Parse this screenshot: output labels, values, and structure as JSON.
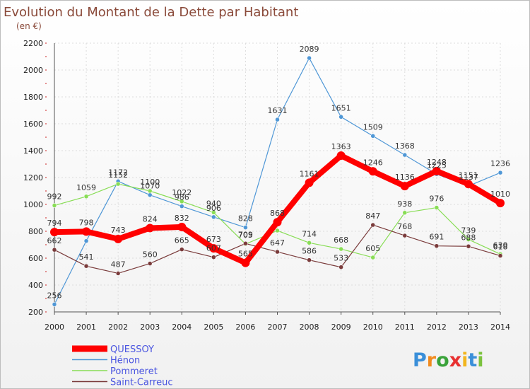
{
  "chart_data": {
    "type": "line",
    "title": "Evolution du Montant de la Dette par Habitant",
    "subtitle": "(en €)",
    "x": [
      "2000",
      "2001",
      "2002",
      "2003",
      "2004",
      "2005",
      "2006",
      "2007",
      "2008",
      "2009",
      "2010",
      "2011",
      "2012",
      "2013",
      "2014"
    ],
    "ylim": [
      200,
      2200
    ],
    "yticks": [
      200,
      400,
      600,
      800,
      1000,
      1200,
      1400,
      1600,
      1800,
      2000,
      2200
    ],
    "grid": true,
    "legend_position": "bottom-left",
    "series": [
      {
        "name": "QUESSOY",
        "color": "#ff0000",
        "values": [
          794,
          798,
          743,
          824,
          832,
          673,
          565,
          868,
          1161,
          1363,
          1246,
          1136,
          1248,
          1151,
          1010
        ],
        "labels": [
          "794",
          "798",
          "743",
          "824",
          "832",
          "673",
          "565",
          "868",
          "1161",
          "1363",
          "1246",
          "1136",
          "1248",
          "1151",
          "1010"
        ]
      },
      {
        "name": "Hénon",
        "color": "#4f97d6",
        "values": [
          256,
          728,
          1172,
          1070,
          986,
          906,
          828,
          1631,
          2089,
          1651,
          1509,
          1368,
          1225,
          1137,
          1236
        ],
        "labels": [
          "256",
          "",
          "1172",
          "1070",
          "986",
          "906",
          "828",
          "1631",
          "2089",
          "1651",
          "1509",
          "1368",
          "1225",
          "1137",
          "1236"
        ]
      },
      {
        "name": "Pommeret",
        "color": "#88dd55",
        "values": [
          992,
          1059,
          1152,
          1100,
          1022,
          940,
          705,
          805,
          714,
          668,
          605,
          938,
          976,
          739,
          630
        ],
        "labels": [
          "992",
          "1059",
          "1152",
          "1100",
          "1022",
          "940",
          "705",
          "",
          "714",
          "668",
          "605",
          "938",
          "976",
          "739",
          "630"
        ]
      },
      {
        "name": "Saint-Carreuc",
        "color": "#7a3b3b",
        "values": [
          662,
          541,
          487,
          560,
          665,
          607,
          709,
          647,
          586,
          533,
          847,
          768,
          691,
          688,
          618
        ],
        "labels": [
          "662",
          "541",
          "487",
          "560",
          "665",
          "607",
          "709",
          "647",
          "586",
          "533",
          "847",
          "768",
          "691",
          "688",
          "618"
        ]
      }
    ]
  },
  "branding": {
    "logo_text": "Proxiti",
    "letter_colors": [
      "#3a8fd9",
      "#f28b1e",
      "#3aa33a",
      "#e83030",
      "#f2b51e",
      "#3a8fd9",
      "#7bc23e"
    ]
  }
}
